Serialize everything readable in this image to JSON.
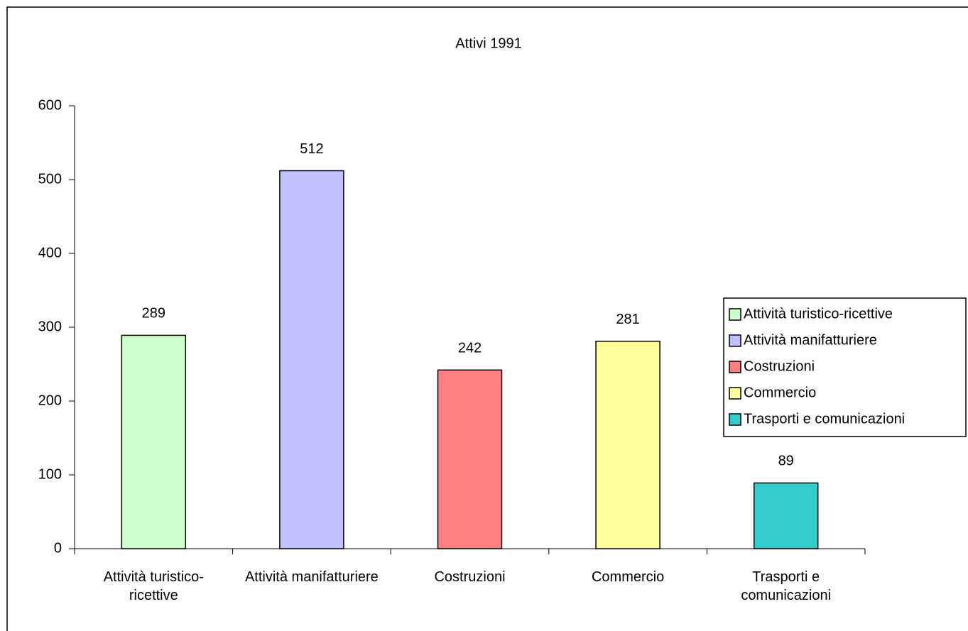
{
  "chart_data": {
    "type": "bar",
    "title": "Attivi 1991",
    "categories": [
      "Attività turistico-ricettive",
      "Attività manifatturiere",
      "Costruzioni",
      "Commercio",
      "Trasporti e comunicazioni"
    ],
    "values": [
      289,
      512,
      242,
      281,
      89
    ],
    "colors": [
      "#ccffcc",
      "#c0c0ff",
      "#ff8080",
      "#ffff99",
      "#33cccc"
    ],
    "ylim": [
      0,
      600
    ],
    "yticks": [
      0,
      100,
      200,
      300,
      400,
      500,
      600
    ],
    "legend": "right",
    "grid": false
  }
}
